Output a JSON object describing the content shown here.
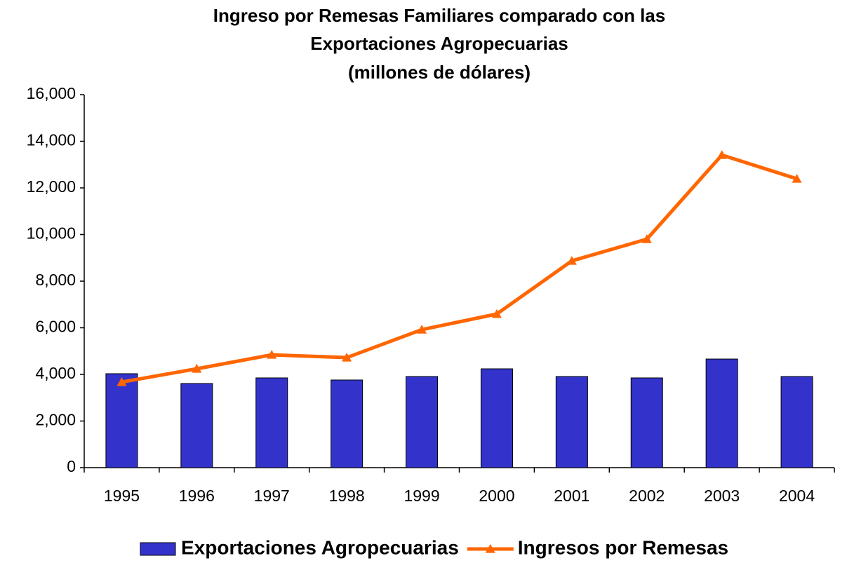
{
  "chart_data": {
    "type": "bar+line",
    "title": [
      "Ingreso por Remesas Familiares comparado con las",
      "Exportaciones Agropecuarias",
      "(millones de dólares)"
    ],
    "categories": [
      "1995",
      "1996",
      "1997",
      "1998",
      "1999",
      "2000",
      "2001",
      "2002",
      "2003",
      "2004"
    ],
    "series": [
      {
        "name": "Exportaciones Agropecuarias",
        "type": "bar",
        "color": "#3333cc",
        "values": [
          4030,
          3610,
          3850,
          3760,
          3910,
          4240,
          3910,
          3850,
          4660,
          3910
        ]
      },
      {
        "name": "Ingresos por Remesas",
        "type": "line",
        "color": "#ff6600",
        "values": [
          3670,
          4240,
          4840,
          4720,
          5920,
          6590,
          8870,
          9800,
          13410,
          12390
        ]
      }
    ],
    "ylim": [
      0,
      16000
    ],
    "yticks": [
      0,
      {
        "value": 2000,
        "label": "2,000"
      },
      {
        "value": 4000,
        "label": "4,000"
      },
      {
        "value": 6000,
        "label": "6,000"
      },
      {
        "value": 8000,
        "label": "8,000"
      },
      {
        "value": 10000,
        "label": "10,000"
      },
      {
        "value": 12000,
        "label": "12,000"
      },
      {
        "value": 14000,
        "label": "14,000"
      },
      {
        "value": 16000,
        "label": "16,000"
      }
    ],
    "grid": false,
    "legend": "bottom"
  }
}
